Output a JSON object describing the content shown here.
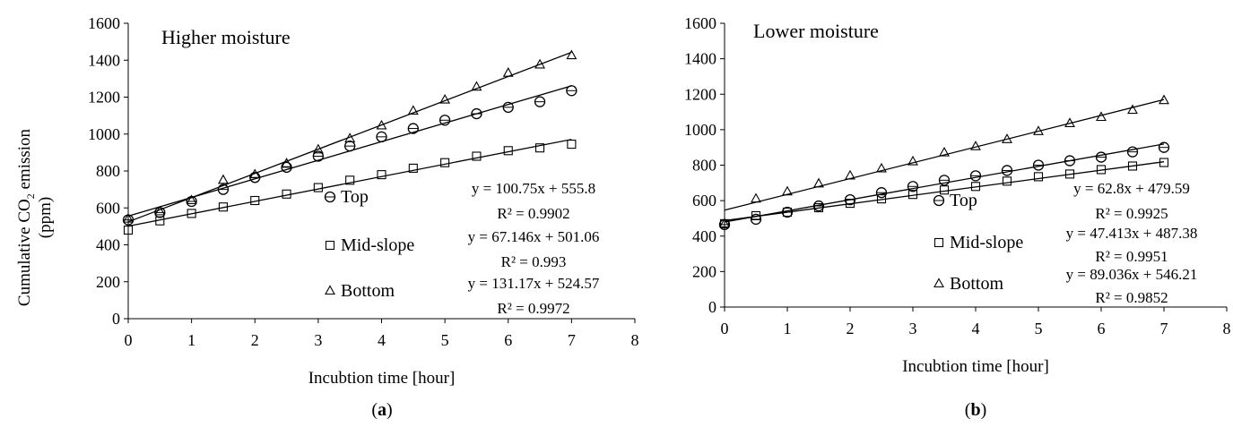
{
  "figure": {
    "ylabel_main": "Cumulative CO",
    "ylabel_sub": "2",
    "ylabel_rest": " emission",
    "ylabel_unit": "(ppm)"
  },
  "chart_data": [
    {
      "type": "scatter",
      "panel_label": "a",
      "title": "Higher moisture",
      "xlabel": "Incubtion time [hour]",
      "xlim": [
        0,
        8
      ],
      "ylim": [
        0,
        1600
      ],
      "xticks": [
        0,
        1,
        2,
        3,
        4,
        5,
        6,
        7,
        8
      ],
      "yticks": [
        0,
        200,
        400,
        600,
        800,
        1000,
        1200,
        1400,
        1600
      ],
      "grid": false,
      "legend": [
        "Top",
        "Mid-slope",
        "Bottom"
      ],
      "x": [
        0,
        0.5,
        1,
        1.5,
        2,
        2.5,
        3,
        3.5,
        4,
        4.5,
        5,
        5.5,
        6,
        6.5,
        7
      ],
      "series": [
        {
          "name": "Top",
          "marker": "circle",
          "values": [
            535,
            575,
            635,
            700,
            765,
            820,
            880,
            935,
            985,
            1030,
            1075,
            1110,
            1145,
            1175,
            1235
          ],
          "equation": "y = 100.75x + 555.8",
          "r2": "R² = 0.9902",
          "slope": 100.75,
          "intercept": 555.8
        },
        {
          "name": "Mid-slope",
          "marker": "square",
          "values": [
            480,
            530,
            570,
            605,
            640,
            675,
            710,
            750,
            780,
            815,
            845,
            880,
            910,
            925,
            945
          ],
          "equation": "y = 67.146x + 501.06",
          "r2": "R² = 0.993",
          "slope": 67.146,
          "intercept": 501.06
        },
        {
          "name": "Bottom",
          "marker": "triangle",
          "values": [
            540,
            580,
            640,
            750,
            780,
            840,
            915,
            975,
            1045,
            1125,
            1185,
            1255,
            1330,
            1375,
            1425
          ],
          "equation": "y = 131.17x + 524.57",
          "r2": "R² = 0.9972",
          "slope": 131.17,
          "intercept": 524.57
        }
      ]
    },
    {
      "type": "scatter",
      "panel_label": "b",
      "title": "Lower moisture",
      "xlabel": "Incubtion time [hour]",
      "xlim": [
        0,
        8
      ],
      "ylim": [
        0,
        1600
      ],
      "xticks": [
        0,
        1,
        2,
        3,
        4,
        5,
        6,
        7,
        8
      ],
      "yticks": [
        0,
        200,
        400,
        600,
        800,
        1000,
        1200,
        1400,
        1600
      ],
      "grid": false,
      "legend": [
        "Top",
        "Mid-slope",
        "Bottom"
      ],
      "x": [
        0,
        0.5,
        1,
        1.5,
        2,
        2.5,
        3,
        3.5,
        4,
        4.5,
        5,
        5.5,
        6,
        6.5,
        7
      ],
      "series": [
        {
          "name": "Top",
          "marker": "circle",
          "values": [
            465,
            495,
            535,
            570,
            605,
            645,
            680,
            715,
            740,
            770,
            800,
            825,
            845,
            875,
            900
          ],
          "equation": "y = 62.8x + 479.59",
          "r2": "R² = 0.9925",
          "slope": 62.8,
          "intercept": 479.59
        },
        {
          "name": "Mid-slope",
          "marker": "square",
          "values": [
            470,
            515,
            535,
            560,
            585,
            610,
            635,
            660,
            680,
            710,
            735,
            750,
            775,
            795,
            815
          ],
          "equation": "y = 47.413x + 487.38",
          "r2": "R² = 0.9951",
          "slope": 47.413,
          "intercept": 487.38
        },
        {
          "name": "Bottom",
          "marker": "triangle",
          "values": [
            470,
            610,
            650,
            695,
            740,
            780,
            820,
            870,
            905,
            945,
            990,
            1035,
            1070,
            1110,
            1165
          ],
          "equation": "y = 89.036x + 546.21",
          "r2": "R² = 0.9852",
          "slope": 89.036,
          "intercept": 546.21
        }
      ]
    }
  ]
}
